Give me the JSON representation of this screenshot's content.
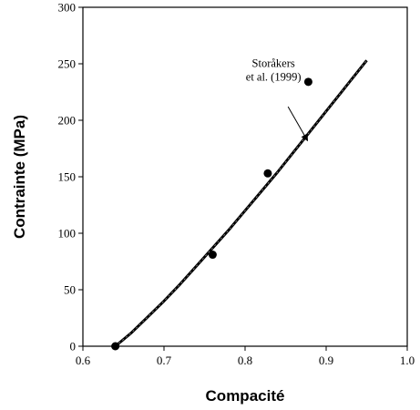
{
  "chart_data": {
    "type": "scatter",
    "xlabel": "Compacité",
    "ylabel": "Contrainte (MPa)",
    "xlim": [
      0.6,
      1.0
    ],
    "ylim": [
      0,
      300
    ],
    "x_ticks": [
      "0.6",
      "0.7",
      "0.8",
      "0.9",
      "1.0"
    ],
    "y_ticks": [
      "0",
      "50",
      "100",
      "150",
      "200",
      "250",
      "300"
    ],
    "x_tick_values": [
      0.6,
      0.7,
      0.8,
      0.9,
      1.0
    ],
    "y_tick_values": [
      0,
      50,
      100,
      150,
      200,
      250,
      300
    ],
    "grid": false,
    "series": [
      {
        "type": "line",
        "x": [
          0.64,
          0.66,
          0.68,
          0.7,
          0.72,
          0.74,
          0.76,
          0.78,
          0.8,
          0.82,
          0.84,
          0.86,
          0.88,
          0.9,
          0.92,
          0.94,
          0.95
        ],
        "y": [
          0,
          12,
          26,
          40,
          55,
          71,
          87,
          103,
          120,
          137,
          154,
          172,
          190,
          208,
          226,
          244,
          253
        ],
        "color": "#000000"
      },
      {
        "type": "scatter",
        "x": [
          0.64,
          0.76,
          0.828,
          0.878
        ],
        "y": [
          0,
          81,
          153,
          234
        ],
        "color": "#000000"
      }
    ],
    "annotations": [
      {
        "lines": [
          "Storåkers",
          "et al. (1999)"
        ],
        "text_x": 0.835,
        "text_y": 247,
        "arrow_from": [
          0.853,
          212
        ],
        "arrow_to": [
          0.877,
          182
        ]
      }
    ]
  }
}
